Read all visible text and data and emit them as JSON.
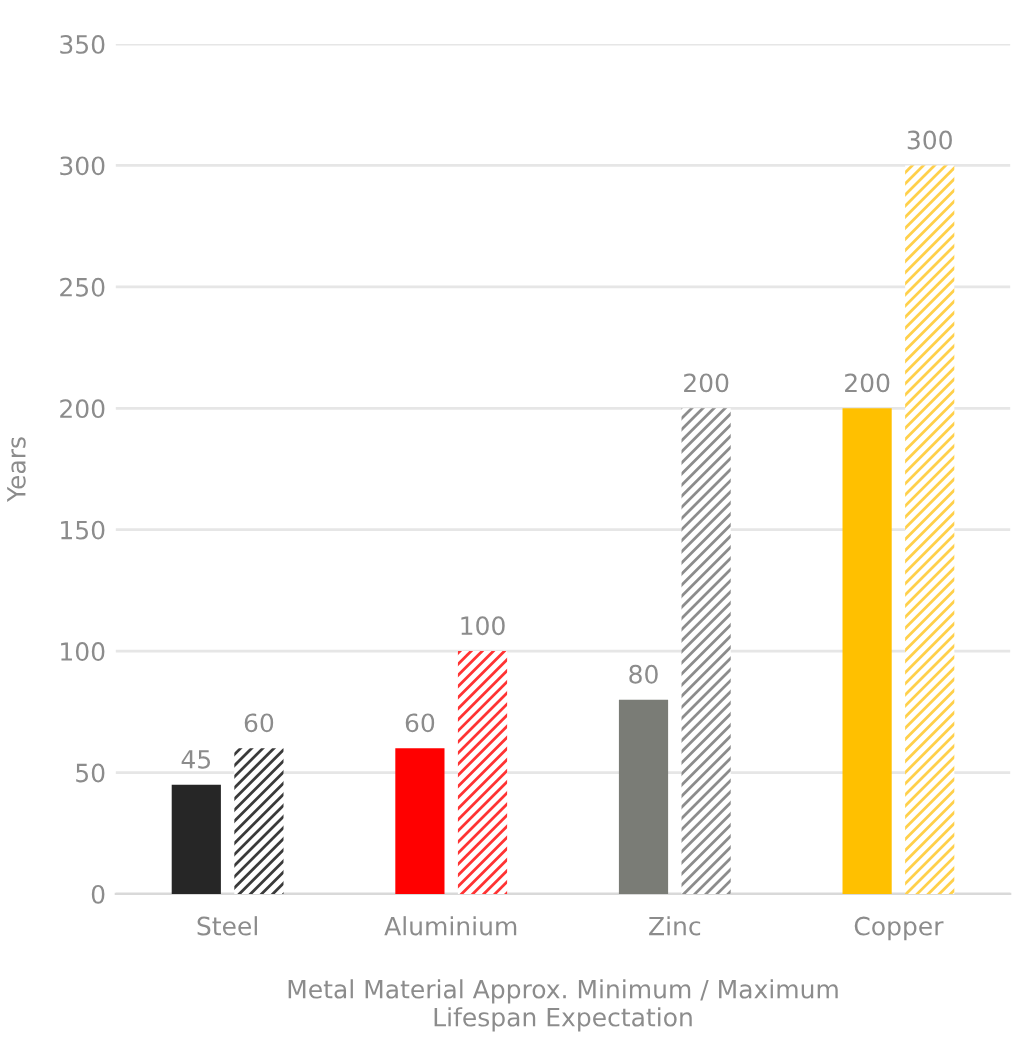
{
  "chart_data": {
    "type": "bar",
    "xlabel": "Metal Material Approx. Minimum / Maximum\nLifespan Expectation",
    "ylabel": "Years",
    "categories": [
      "Steel",
      "Aluminium",
      "Zinc",
      "Copper"
    ],
    "series": [
      {
        "colors": [
          "#262626",
          "#ff0000",
          "#7a7c76",
          "#ffc000"
        ],
        "values": [
          45,
          60,
          80,
          200
        ]
      },
      {
        "colors": [
          "#3a3a3a",
          "#ff3333",
          "#8c8c8c",
          "#ffd04a"
        ],
        "values": [
          60,
          100,
          200,
          300
        ]
      }
    ],
    "ylim": [
      0,
      350
    ],
    "yticks": [
      0,
      50,
      100,
      150,
      200,
      250,
      300,
      350
    ],
    "grid": "y",
    "data_labels": true,
    "legend": false
  }
}
